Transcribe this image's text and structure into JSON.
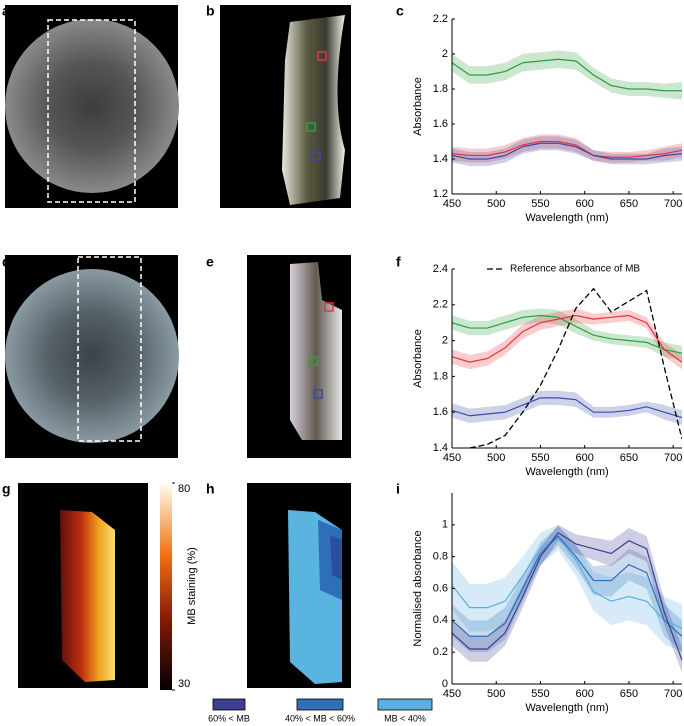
{
  "panels": [
    "a",
    "b",
    "c",
    "d",
    "e",
    "f",
    "g",
    "h",
    "i"
  ],
  "colorbar": {
    "label": "MB staining (%)",
    "ticks": [
      80,
      30
    ]
  },
  "chart_data": [
    {
      "type": "line",
      "xlabel": "Wavelength (nm)",
      "ylabel": "Absorbance",
      "x": [
        450,
        470,
        490,
        510,
        530,
        550,
        570,
        590,
        610,
        630,
        650,
        670,
        690,
        710
      ],
      "xlim": [
        450,
        710
      ],
      "xticks": [
        450,
        500,
        550,
        600,
        650,
        700
      ],
      "ylim": [
        1.2,
        2.2
      ],
      "yticks": [
        1.2,
        1.4,
        1.6,
        1.8,
        2,
        2.2
      ],
      "series": [
        {
          "color": "#2e9e3e",
          "values": [
            1.95,
            1.88,
            1.88,
            1.9,
            1.95,
            1.96,
            1.97,
            1.96,
            1.88,
            1.82,
            1.8,
            1.8,
            1.79,
            1.79
          ],
          "errors": [
            0.05,
            0.05,
            0.05,
            0.05,
            0.05,
            0.05,
            0.05,
            0.05,
            0.04,
            0.04,
            0.04,
            0.04,
            0.04,
            0.05
          ]
        },
        {
          "color": "#e8343c",
          "values": [
            1.43,
            1.42,
            1.42,
            1.44,
            1.48,
            1.5,
            1.5,
            1.48,
            1.42,
            1.41,
            1.41,
            1.42,
            1.43,
            1.45
          ],
          "errors": [
            0.04,
            0.04,
            0.04,
            0.04,
            0.04,
            0.04,
            0.04,
            0.04,
            0.03,
            0.03,
            0.03,
            0.03,
            0.04,
            0.04
          ]
        },
        {
          "color": "#3a4aa8",
          "values": [
            1.42,
            1.4,
            1.4,
            1.42,
            1.47,
            1.49,
            1.49,
            1.47,
            1.42,
            1.4,
            1.4,
            1.4,
            1.42,
            1.43
          ],
          "errors": [
            0.04,
            0.04,
            0.04,
            0.04,
            0.04,
            0.04,
            0.04,
            0.04,
            0.03,
            0.03,
            0.03,
            0.03,
            0.04,
            0.04
          ]
        }
      ]
    },
    {
      "type": "line",
      "xlabel": "Wavelength (nm)",
      "ylabel": "Absorbance",
      "x": [
        450,
        470,
        490,
        510,
        530,
        550,
        570,
        590,
        610,
        630,
        650,
        670,
        690,
        710
      ],
      "xlim": [
        450,
        710
      ],
      "xticks": [
        450,
        500,
        550,
        600,
        650,
        700
      ],
      "ylim": [
        1.4,
        2.4
      ],
      "yticks": [
        1.4,
        1.6,
        1.8,
        2,
        2.2,
        2.4
      ],
      "series": [
        {
          "color": "#2e9e3e",
          "values": [
            2.1,
            2.07,
            2.07,
            2.1,
            2.13,
            2.14,
            2.13,
            2.08,
            2.03,
            2.01,
            2,
            1.99,
            1.95,
            1.93
          ],
          "errors": [
            0.04,
            0.04,
            0.04,
            0.04,
            0.04,
            0.04,
            0.04,
            0.04,
            0.03,
            0.03,
            0.03,
            0.03,
            0.04,
            0.04
          ]
        },
        {
          "color": "#e8343c",
          "values": [
            1.91,
            1.88,
            1.9,
            1.96,
            2.05,
            2.1,
            2.12,
            2.14,
            2.12,
            2.13,
            2.14,
            2.1,
            1.95,
            1.88
          ],
          "errors": [
            0.04,
            0.04,
            0.04,
            0.04,
            0.04,
            0.04,
            0.04,
            0.04,
            0.03,
            0.03,
            0.03,
            0.03,
            0.04,
            0.04
          ]
        },
        {
          "color": "#3a4aa8",
          "values": [
            1.61,
            1.58,
            1.59,
            1.6,
            1.64,
            1.68,
            1.68,
            1.67,
            1.6,
            1.6,
            1.61,
            1.63,
            1.6,
            1.57
          ],
          "errors": [
            0.04,
            0.04,
            0.04,
            0.04,
            0.04,
            0.04,
            0.04,
            0.04,
            0.03,
            0.03,
            0.03,
            0.03,
            0.04,
            0.04
          ]
        },
        {
          "name": "Reference absorbance of MB",
          "color": "#000000",
          "dashed": true,
          "values": [
            null,
            1.4,
            1.42,
            1.47,
            1.6,
            1.75,
            1.95,
            2.18,
            2.29,
            2.16,
            2.22,
            2.28,
            1.85,
            1.45
          ]
        }
      ]
    },
    {
      "type": "line",
      "xlabel": "Wavelength (nm)",
      "ylabel": "Normalised absorbance",
      "x": [
        450,
        470,
        490,
        510,
        530,
        550,
        570,
        590,
        610,
        630,
        650,
        670,
        690,
        710
      ],
      "xlim": [
        450,
        710
      ],
      "xticks": [
        450,
        500,
        550,
        600,
        650,
        700
      ],
      "ylim": [
        0,
        1.2
      ],
      "yticks": [
        0,
        0.2,
        0.4,
        0.6,
        0.8,
        1
      ],
      "series": [
        {
          "name": "MB < 40%",
          "color": "#5aaee0",
          "values": [
            0.62,
            0.48,
            0.48,
            0.52,
            0.68,
            0.85,
            0.92,
            0.78,
            0.58,
            0.52,
            0.55,
            0.52,
            0.4,
            0.35
          ],
          "errors": [
            0.15,
            0.15,
            0.15,
            0.15,
            0.12,
            0.1,
            0.08,
            0.1,
            0.12,
            0.15,
            0.15,
            0.15,
            0.15,
            0.15
          ]
        },
        {
          "name": "40% < MB < 60%",
          "color": "#2f6fb8",
          "values": [
            0.4,
            0.3,
            0.3,
            0.38,
            0.6,
            0.82,
            0.93,
            0.8,
            0.65,
            0.65,
            0.75,
            0.7,
            0.4,
            0.3
          ],
          "errors": [
            0.1,
            0.1,
            0.1,
            0.1,
            0.08,
            0.07,
            0.06,
            0.07,
            0.09,
            0.1,
            0.1,
            0.1,
            0.1,
            0.1
          ]
        },
        {
          "name": "60% < MB",
          "color": "#3a3f94",
          "values": [
            0.32,
            0.22,
            0.22,
            0.32,
            0.55,
            0.8,
            0.95,
            0.88,
            0.85,
            0.82,
            0.9,
            0.85,
            0.45,
            0.15
          ],
          "errors": [
            0.08,
            0.08,
            0.08,
            0.08,
            0.07,
            0.06,
            0.05,
            0.06,
            0.07,
            0.08,
            0.08,
            0.08,
            0.08,
            0.08
          ]
        }
      ]
    }
  ]
}
